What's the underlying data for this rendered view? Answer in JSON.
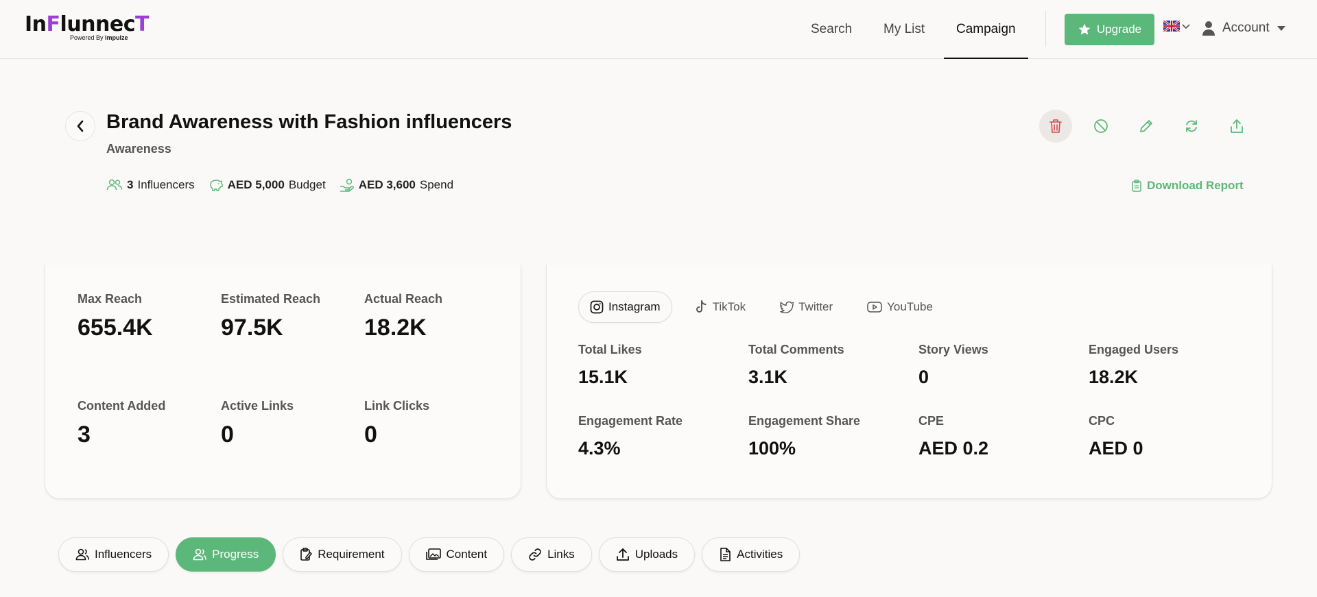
{
  "colors": {
    "accent": "#5cb87a",
    "brand": "#9b3fd6",
    "danger": "#d14b4b"
  },
  "header": {
    "logo": {
      "text_a": "In",
      "text_f": "F",
      "text_b": "lunnec",
      "text_t": "T",
      "powered": "Powered By",
      "powered_brand": "impulze"
    },
    "nav": [
      {
        "label": "Search",
        "active": false
      },
      {
        "label": "My List",
        "active": false
      },
      {
        "label": "Campaign",
        "active": true
      }
    ],
    "upgrade_label": "Upgrade",
    "account_label": "Account"
  },
  "campaign": {
    "title": "Brand Awareness with Fashion influencers",
    "subtitle": "Awareness",
    "influencers_count": "3",
    "influencers_label": "Influencers",
    "budget_value": "AED 5,000",
    "budget_label": "Budget",
    "spend_value": "AED 3,600",
    "spend_label": "Spend",
    "download_label": "Download Report"
  },
  "reach_card": {
    "metrics": [
      {
        "label": "Max Reach",
        "value": "655.4K"
      },
      {
        "label": "Estimated Reach",
        "value": "97.5K"
      },
      {
        "label": "Actual Reach",
        "value": "18.2K"
      },
      {
        "label": "Content Added",
        "value": "3"
      },
      {
        "label": "Active Links",
        "value": "0"
      },
      {
        "label": "Link Clicks",
        "value": "0"
      }
    ]
  },
  "engagement_card": {
    "platform_tabs": [
      {
        "label": "Instagram",
        "icon": "instagram-icon",
        "active": true
      },
      {
        "label": "TikTok",
        "icon": "tiktok-icon",
        "active": false
      },
      {
        "label": "Twitter",
        "icon": "twitter-icon",
        "active": false
      },
      {
        "label": "YouTube",
        "icon": "youtube-icon",
        "active": false
      }
    ],
    "metrics": [
      {
        "label": "Total Likes",
        "value": "15.1K"
      },
      {
        "label": "Total Comments",
        "value": "3.1K"
      },
      {
        "label": "Story Views",
        "value": "0"
      },
      {
        "label": "Engaged Users",
        "value": "18.2K"
      },
      {
        "label": "Engagement Rate",
        "value": "4.3%"
      },
      {
        "label": "Engagement Share",
        "value": "100%"
      },
      {
        "label": "CPE",
        "value": "AED 0.2"
      },
      {
        "label": "CPC",
        "value": "AED 0"
      }
    ]
  },
  "bottom_tabs": [
    {
      "label": "Influencers",
      "icon": "users-icon",
      "active": false
    },
    {
      "label": "Progress",
      "icon": "users-icon",
      "active": true
    },
    {
      "label": "Requirement",
      "icon": "clipboard-icon",
      "active": false
    },
    {
      "label": "Content",
      "icon": "images-icon",
      "active": false
    },
    {
      "label": "Links",
      "icon": "link-icon",
      "active": false
    },
    {
      "label": "Uploads",
      "icon": "upload-icon",
      "active": false
    },
    {
      "label": "Activities",
      "icon": "document-icon",
      "active": false
    }
  ]
}
